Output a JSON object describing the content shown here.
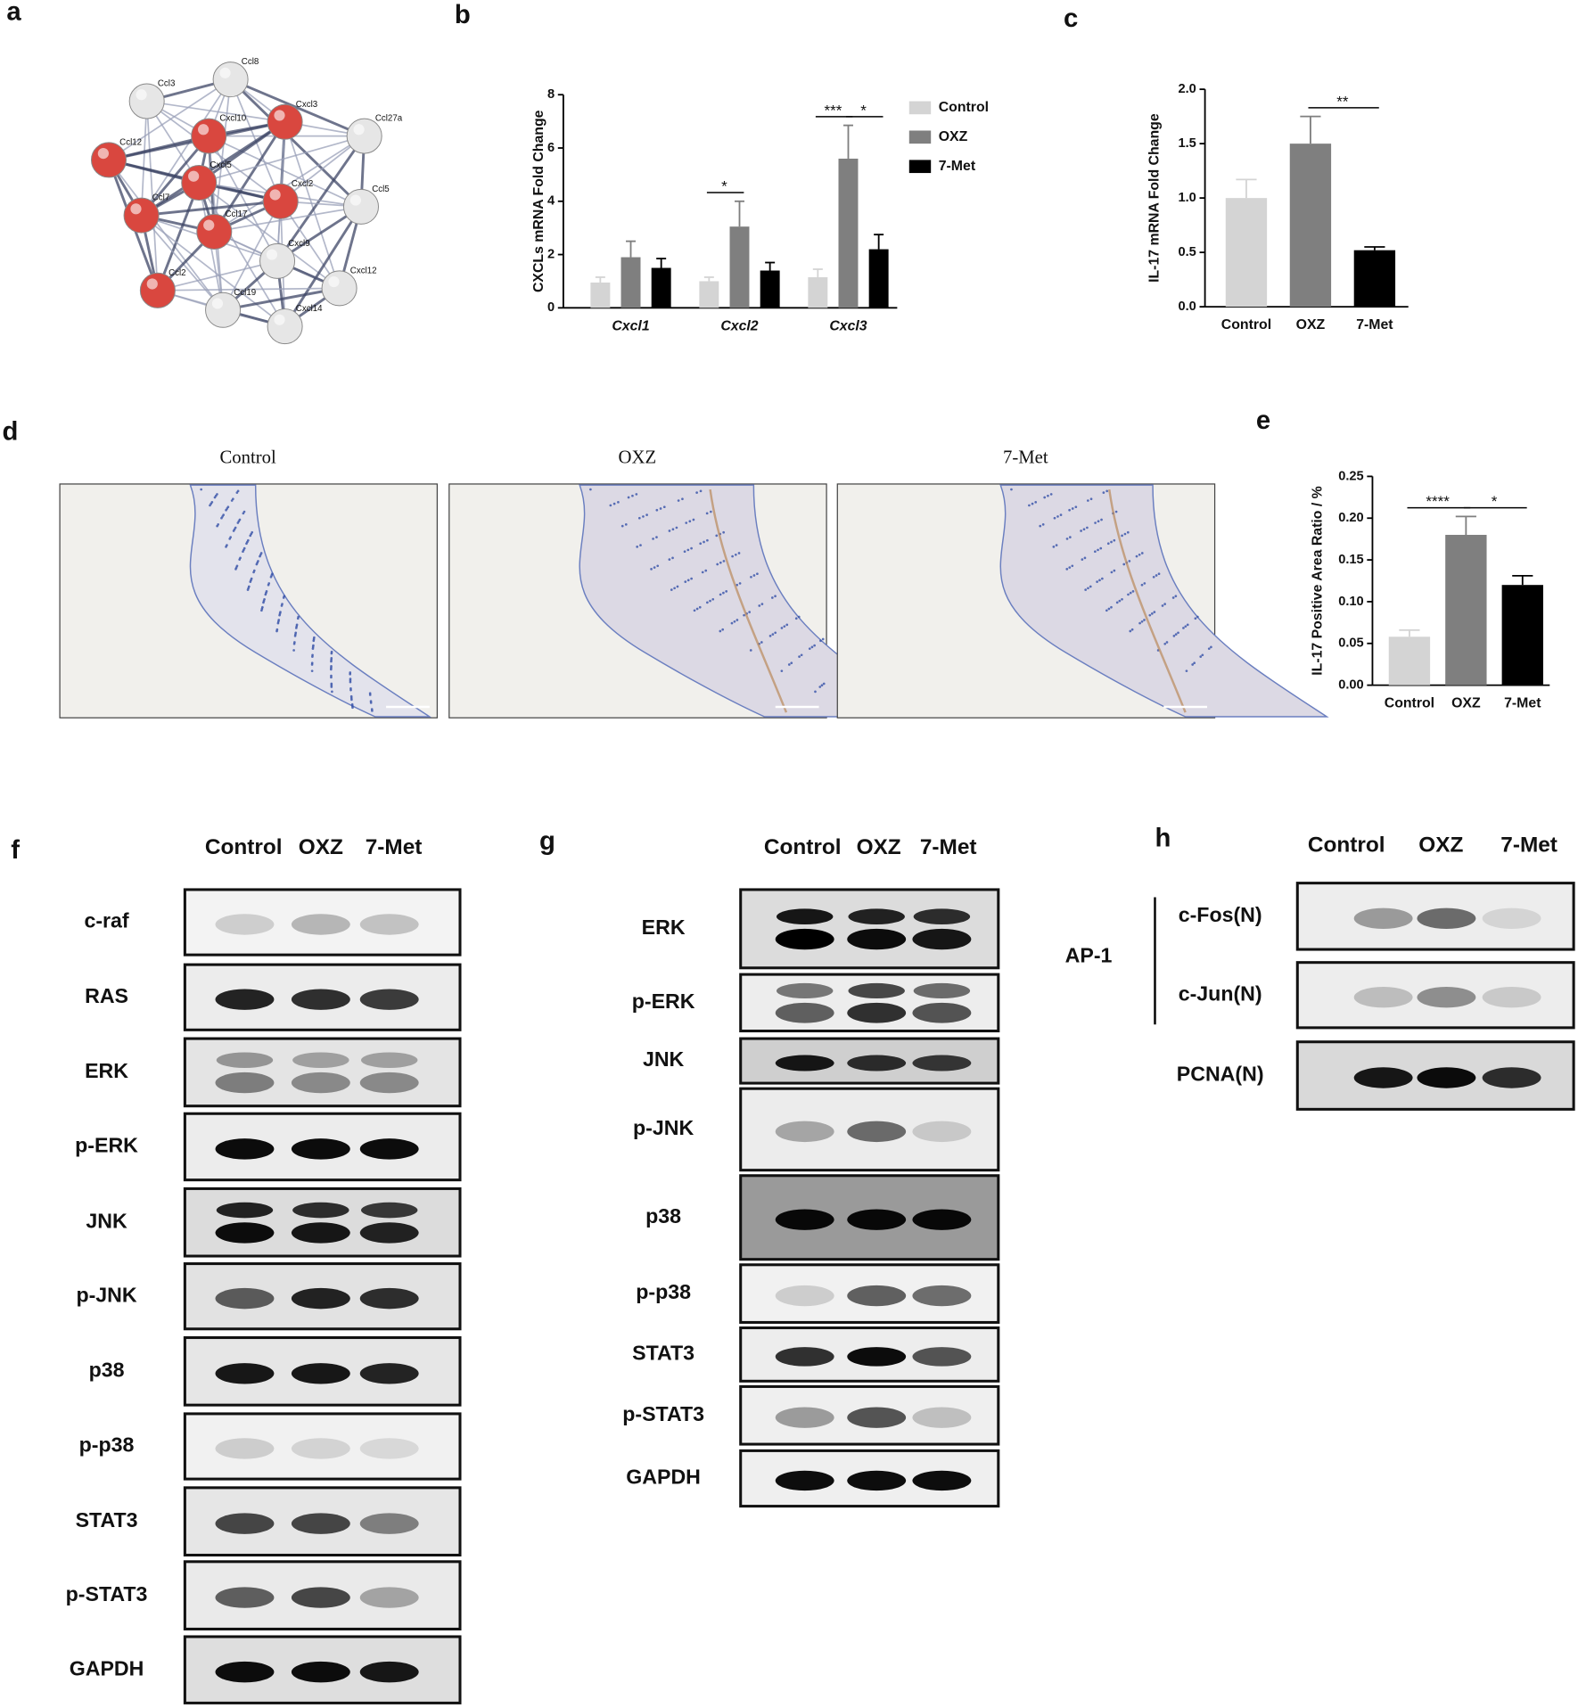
{
  "chart_data": [
    {
      "type": "bar",
      "panel_label": "b",
      "y_label": "CXCLs mRNA Fold Change",
      "categories": [
        "Cxcl1",
        "Cxcl2",
        "Cxcl3"
      ],
      "series": [
        {
          "name": "Control",
          "color": "#d4d4d4",
          "values": [
            0.95,
            1.0,
            1.15
          ],
          "errors": [
            0.2,
            0.15,
            0.3
          ]
        },
        {
          "name": "OXZ",
          "color": "#7f7f7f",
          "values": [
            1.9,
            3.05,
            5.6
          ],
          "errors": [
            0.6,
            0.95,
            1.25
          ]
        },
        {
          "name": "7-Met",
          "color": "#000000",
          "values": [
            1.5,
            1.4,
            2.2
          ],
          "errors": [
            0.35,
            0.3,
            0.55
          ]
        }
      ],
      "ylim": [
        0,
        8
      ],
      "yticks": [
        0,
        2,
        4,
        6,
        8
      ],
      "legend": "upper right",
      "annotations": [
        {
          "text": "*",
          "category": "Cxcl2",
          "between": [
            "Control",
            "OXZ"
          ]
        },
        {
          "text": "***",
          "category": "Cxcl3",
          "between": [
            "Control",
            "OXZ"
          ]
        },
        {
          "text": "*",
          "category": "Cxcl3",
          "between": [
            "OXZ",
            "7-Met"
          ]
        }
      ]
    },
    {
      "type": "bar",
      "panel_label": "c",
      "y_label": "IL-17 mRNA Fold Change",
      "categories": [
        "Control",
        "OXZ",
        "7-Met"
      ],
      "values": [
        1.0,
        1.5,
        0.52
      ],
      "errors": [
        0.17,
        0.25,
        0.03
      ],
      "colors": [
        "#d4d4d4",
        "#7f7f7f",
        "#000000"
      ],
      "ylim": [
        0,
        2
      ],
      "yticks": [
        {
          "value": 0,
          "label": "0.0"
        },
        0.5,
        {
          "value": 1,
          "label": "1.0"
        },
        1.5,
        {
          "value": 2,
          "label": "2.0"
        }
      ],
      "annotations": [
        {
          "text": "**",
          "between": [
            "OXZ",
            "7-Met"
          ]
        }
      ]
    },
    {
      "type": "bar",
      "panel_label": "e",
      "y_label": "IL-17 Positive Area Ratio / %",
      "categories": [
        "Control",
        "OXZ",
        "7-Met"
      ],
      "values": [
        0.058,
        0.18,
        0.12
      ],
      "errors": [
        0.008,
        0.022,
        0.011
      ],
      "colors": [
        "#d4d4d4",
        "#7f7f7f",
        "#000000"
      ],
      "ylim": [
        0,
        0.25
      ],
      "yticks": [
        {
          "value": 0,
          "label": "0.00"
        },
        0.05,
        {
          "value": 0.1,
          "label": "0.10"
        },
        0.15,
        {
          "value": 0.2,
          "label": "0.20"
        },
        0.25
      ],
      "annotations": [
        {
          "text": "****",
          "between": [
            "Control",
            "OXZ"
          ]
        },
        {
          "text": "*",
          "between": [
            "OXZ",
            "7-Met"
          ]
        }
      ]
    }
  ],
  "network": {
    "panel_label": "a",
    "nodes": [
      {
        "label": "Ccl3",
        "color": "#e6e6e6"
      },
      {
        "label": "Ccl8",
        "color": "#e6e6e6"
      },
      {
        "label": "Cxcl10",
        "color": "#d9473f"
      },
      {
        "label": "Cxcl3",
        "color": "#d9473f"
      },
      {
        "label": "Ccl27a",
        "color": "#e6e6e6"
      },
      {
        "label": "Ccl12",
        "color": "#d9473f"
      },
      {
        "label": "Cxcl5",
        "color": "#d9473f"
      },
      {
        "label": "Cxcl2",
        "color": "#d9473f"
      },
      {
        "label": "Ccl5",
        "color": "#e6e6e6"
      },
      {
        "label": "Ccl7",
        "color": "#d9473f"
      },
      {
        "label": "Ccl17",
        "color": "#d9473f"
      },
      {
        "label": "Cxcl9",
        "color": "#e6e6e6"
      },
      {
        "label": "Ccl2",
        "color": "#d9473f"
      },
      {
        "label": "Ccl19",
        "color": "#e6e6e6"
      },
      {
        "label": "Cxcl12",
        "color": "#e6e6e6"
      },
      {
        "label": "Cxcl14",
        "color": "#e6e6e6"
      }
    ]
  },
  "histology": {
    "panel_label": "d",
    "titles": [
      "Control",
      "OXZ",
      "7-Met"
    ]
  },
  "blots": [
    {
      "panel_label": "f",
      "lanes": [
        "Control",
        "OXZ",
        "7-Met"
      ],
      "rows": [
        "c-raf",
        "RAS",
        "ERK",
        "p-ERK",
        "JNK",
        "p-JNK",
        "p38",
        "p-p38",
        "STAT3",
        "p-STAT3",
        "GAPDH"
      ]
    },
    {
      "panel_label": "g",
      "lanes": [
        "Control",
        "OXZ",
        "7-Met"
      ],
      "rows": [
        "ERK",
        "p-ERK",
        "JNK",
        "p-JNK",
        "p38",
        "p-p38",
        "STAT3",
        "p-STAT3",
        "GAPDH"
      ]
    },
    {
      "panel_label": "h",
      "lanes": [
        "Control",
        "OXZ",
        "7-Met"
      ],
      "group_label": "AP-1",
      "rows": [
        "c-Fos(N)",
        "c-Jun(N)",
        "PCNA(N)"
      ]
    }
  ]
}
